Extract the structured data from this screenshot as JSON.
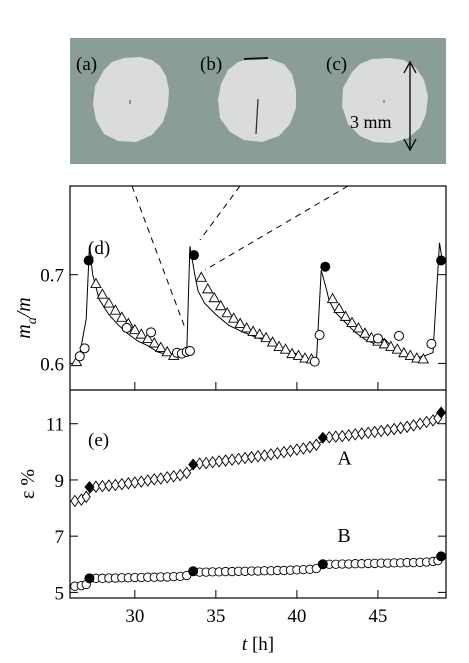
{
  "figure": {
    "panel_labels": {
      "a": "(a)",
      "b": "(b)",
      "c": "(c)",
      "d": "(d)",
      "e": "(e)"
    },
    "scale_bar_label": "3 mm",
    "colors": {
      "photo_bg": "#8a9e96",
      "droplet": "#d9dcd9",
      "ink": "#000000"
    }
  },
  "chart_data": [
    {
      "type": "scatter",
      "panel": "(d)",
      "ylabel_main": "m",
      "ylabel_sub": "a",
      "ylabel_tail": "/m",
      "xlim": [
        26,
        49.2
      ],
      "ylim": [
        0.57,
        0.8
      ],
      "yticks": [
        0.6,
        0.7
      ],
      "ytick_labels": [
        "0.6",
        "0.7"
      ],
      "xticks": [
        30,
        35,
        40,
        45
      ],
      "line": {
        "x": [
          26.2,
          26.6,
          27.0,
          27.2,
          27.4,
          27.8,
          28.4,
          29.0,
          29.6,
          30.2,
          30.8,
          31.4,
          32.0,
          32.6,
          33.2,
          33.4,
          33.7,
          33.9,
          34.3,
          35.0,
          35.8,
          36.6,
          37.4,
          38.2,
          39.0,
          39.8,
          40.6,
          41.2,
          41.5,
          41.8,
          42.0,
          42.4,
          43.0,
          43.6,
          44.2,
          44.8,
          45.4,
          46.0,
          46.6,
          47.2,
          47.8,
          48.4,
          48.8,
          49.0
        ],
        "y": [
          0.6,
          0.61,
          0.65,
          0.732,
          0.7,
          0.672,
          0.655,
          0.643,
          0.633,
          0.625,
          0.62,
          0.613,
          0.61,
          0.608,
          0.61,
          0.732,
          0.7,
          0.682,
          0.668,
          0.655,
          0.643,
          0.636,
          0.63,
          0.625,
          0.618,
          0.612,
          0.606,
          0.6,
          0.705,
          0.685,
          0.67,
          0.657,
          0.646,
          0.635,
          0.627,
          0.622,
          0.628,
          0.616,
          0.61,
          0.606,
          0.608,
          0.612,
          0.736,
          0.712
        ]
      },
      "triangles": {
        "x": [
          26.4,
          27.6,
          28.0,
          28.4,
          28.8,
          29.2,
          29.6,
          30.0,
          30.4,
          30.8,
          31.2,
          31.6,
          32.0,
          32.4,
          34.1,
          34.5,
          34.9,
          35.3,
          35.7,
          36.1,
          36.5,
          36.9,
          37.3,
          37.7,
          38.1,
          38.5,
          38.9,
          39.3,
          39.7,
          40.1,
          40.5,
          40.9,
          42.2,
          42.6,
          43.0,
          43.4,
          43.8,
          44.2,
          44.6,
          45.0,
          45.4,
          45.8,
          46.2,
          46.6,
          47.0,
          47.4,
          47.8
        ],
        "y": [
          0.602,
          0.69,
          0.678,
          0.668,
          0.66,
          0.652,
          0.645,
          0.638,
          0.633,
          0.628,
          0.623,
          0.618,
          0.613,
          0.609,
          0.697,
          0.684,
          0.674,
          0.665,
          0.657,
          0.651,
          0.645,
          0.64,
          0.636,
          0.633,
          0.629,
          0.624,
          0.619,
          0.616,
          0.611,
          0.609,
          0.606,
          0.605,
          0.673,
          0.662,
          0.653,
          0.646,
          0.64,
          0.634,
          0.629,
          0.625,
          0.622,
          0.619,
          0.616,
          0.612,
          0.609,
          0.606,
          0.605
        ]
      },
      "open_circles": {
        "x": [
          26.6,
          26.9,
          29.5,
          31.0,
          32.6,
          32.9,
          33.2,
          33.4,
          41.1,
          41.4,
          45.0,
          46.3,
          48.3
        ],
        "y": [
          0.608,
          0.617,
          0.64,
          0.635,
          0.612,
          0.611,
          0.613,
          0.614,
          0.602,
          0.632,
          0.628,
          0.631,
          0.622
        ]
      },
      "filled_circles": {
        "x": [
          27.15,
          33.65,
          41.75,
          48.9
        ],
        "y": [
          0.716,
          0.722,
          0.709,
          0.716
        ]
      }
    },
    {
      "type": "scatter",
      "panel": "(e)",
      "ylabel": "ε %",
      "xlabel_var": "t",
      "xlabel_unit": " [h]",
      "xlim": [
        26,
        49.2
      ],
      "ylim": [
        4.8,
        12.2
      ],
      "yticks": [
        5,
        7,
        9,
        11
      ],
      "ytick_labels": [
        "5",
        "7",
        "9",
        "11"
      ],
      "xticks": [
        30,
        35,
        40,
        45
      ],
      "xtick_labels": [
        "30",
        "35",
        "40",
        "45"
      ],
      "series_labels": [
        {
          "name": "A",
          "x": 42.5,
          "y": 9.55
        },
        {
          "name": "B",
          "x": 42.5,
          "y": 6.8
        }
      ],
      "A": {
        "step_x": [
          26.2,
          27.2,
          33.6,
          41.6,
          48.9
        ],
        "step_y": [
          8.35,
          8.75,
          9.55,
          10.5,
          11.4
        ],
        "diamonds_x": [
          26.3,
          26.7,
          27.0,
          27.6,
          28.0,
          28.4,
          28.8,
          29.2,
          29.6,
          30.0,
          30.4,
          30.8,
          31.2,
          31.6,
          32.0,
          32.4,
          32.8,
          33.2,
          34.0,
          34.4,
          34.8,
          35.2,
          35.6,
          36.0,
          36.4,
          36.8,
          37.2,
          37.6,
          38.0,
          38.4,
          38.8,
          39.2,
          39.6,
          40.0,
          40.4,
          40.8,
          41.2,
          42.0,
          42.4,
          42.8,
          43.2,
          43.6,
          44.0,
          44.4,
          44.8,
          45.2,
          45.6,
          46.0,
          46.4,
          46.8,
          47.2,
          47.6,
          48.0,
          48.4,
          48.7
        ],
        "diamonds_y": [
          8.25,
          8.3,
          8.4,
          8.76,
          8.78,
          8.8,
          8.82,
          8.85,
          8.88,
          8.91,
          8.94,
          8.98,
          9.02,
          9.05,
          9.09,
          9.13,
          9.17,
          9.25,
          9.58,
          9.6,
          9.63,
          9.66,
          9.69,
          9.72,
          9.75,
          9.78,
          9.81,
          9.84,
          9.87,
          9.91,
          9.95,
          9.99,
          10.03,
          10.08,
          10.12,
          10.17,
          10.25,
          10.52,
          10.54,
          10.56,
          10.59,
          10.62,
          10.65,
          10.68,
          10.71,
          10.74,
          10.77,
          10.81,
          10.85,
          10.89,
          10.94,
          11.0,
          11.06,
          11.12,
          11.2
        ],
        "filled_x": [
          27.2,
          33.6,
          41.6,
          48.9
        ],
        "filled_y": [
          8.75,
          9.55,
          10.5,
          11.4
        ]
      },
      "B": {
        "circles_x": [
          26.3,
          26.7,
          27.0,
          27.6,
          28.0,
          28.4,
          28.8,
          29.2,
          29.6,
          30.0,
          30.4,
          30.8,
          31.2,
          31.6,
          32.0,
          32.4,
          32.8,
          33.2,
          34.0,
          34.4,
          34.8,
          35.2,
          35.6,
          36.0,
          36.4,
          36.8,
          37.2,
          37.6,
          38.0,
          38.4,
          38.8,
          39.2,
          39.6,
          40.0,
          40.4,
          40.8,
          41.2,
          42.0,
          42.4,
          42.8,
          43.2,
          43.6,
          44.0,
          44.4,
          44.8,
          45.2,
          45.6,
          46.0,
          46.4,
          46.8,
          47.2,
          47.6,
          48.0,
          48.4,
          48.7
        ],
        "circles_y": [
          5.22,
          5.24,
          5.28,
          5.5,
          5.5,
          5.51,
          5.51,
          5.52,
          5.52,
          5.53,
          5.53,
          5.54,
          5.54,
          5.55,
          5.55,
          5.56,
          5.57,
          5.6,
          5.72,
          5.72,
          5.73,
          5.73,
          5.74,
          5.74,
          5.75,
          5.75,
          5.76,
          5.76,
          5.77,
          5.77,
          5.78,
          5.78,
          5.79,
          5.8,
          5.81,
          5.82,
          5.85,
          6.0,
          6.0,
          6.01,
          6.01,
          6.02,
          6.02,
          6.03,
          6.03,
          6.04,
          6.04,
          6.05,
          6.05,
          6.06,
          6.06,
          6.07,
          6.08,
          6.1,
          6.13
        ],
        "filled_x": [
          27.2,
          33.6,
          41.6,
          48.9
        ],
        "filled_y": [
          5.5,
          5.75,
          6.0,
          6.28
        ]
      }
    }
  ]
}
